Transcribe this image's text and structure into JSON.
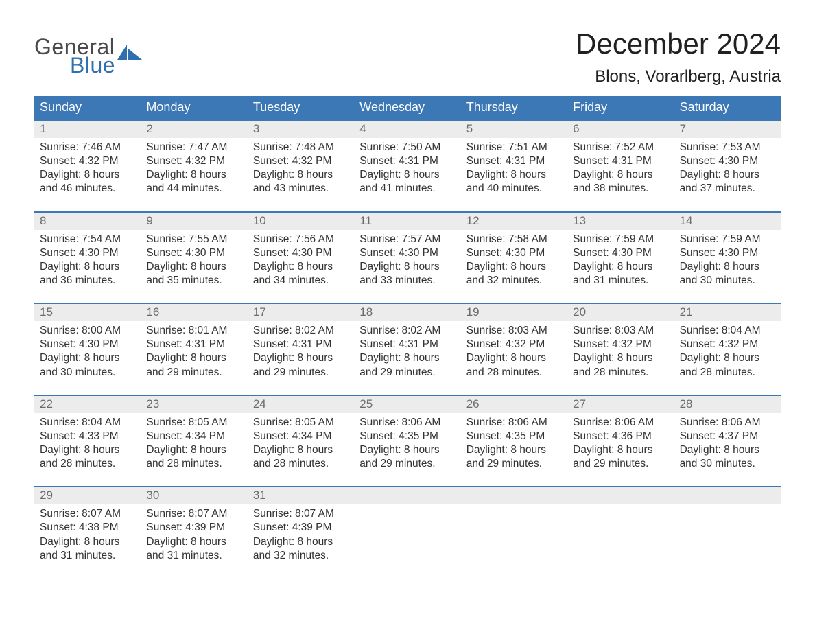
{
  "logo": {
    "word1": "General",
    "word2": "Blue",
    "text_color": "#4a4a4a",
    "accent_color": "#2f6fad"
  },
  "title": "December 2024",
  "location": "Blons, Vorarlberg, Austria",
  "colors": {
    "header_bg": "#3b78b5",
    "header_text": "#ffffff",
    "daynum_bg": "#ececec",
    "daynum_text": "#6b6b6b",
    "body_text": "#333333",
    "week_border": "#3b78b5",
    "page_bg": "#ffffff"
  },
  "typography": {
    "title_fontsize": 42,
    "location_fontsize": 24,
    "weekday_fontsize": 18,
    "daynum_fontsize": 17,
    "cell_fontsize": 15.5
  },
  "weekdays": [
    "Sunday",
    "Monday",
    "Tuesday",
    "Wednesday",
    "Thursday",
    "Friday",
    "Saturday"
  ],
  "weeks": [
    [
      {
        "n": "1",
        "sunrise": "7:46 AM",
        "sunset": "4:32 PM",
        "daylight": "8 hours and 46 minutes."
      },
      {
        "n": "2",
        "sunrise": "7:47 AM",
        "sunset": "4:32 PM",
        "daylight": "8 hours and 44 minutes."
      },
      {
        "n": "3",
        "sunrise": "7:48 AM",
        "sunset": "4:32 PM",
        "daylight": "8 hours and 43 minutes."
      },
      {
        "n": "4",
        "sunrise": "7:50 AM",
        "sunset": "4:31 PM",
        "daylight": "8 hours and 41 minutes."
      },
      {
        "n": "5",
        "sunrise": "7:51 AM",
        "sunset": "4:31 PM",
        "daylight": "8 hours and 40 minutes."
      },
      {
        "n": "6",
        "sunrise": "7:52 AM",
        "sunset": "4:31 PM",
        "daylight": "8 hours and 38 minutes."
      },
      {
        "n": "7",
        "sunrise": "7:53 AM",
        "sunset": "4:30 PM",
        "daylight": "8 hours and 37 minutes."
      }
    ],
    [
      {
        "n": "8",
        "sunrise": "7:54 AM",
        "sunset": "4:30 PM",
        "daylight": "8 hours and 36 minutes."
      },
      {
        "n": "9",
        "sunrise": "7:55 AM",
        "sunset": "4:30 PM",
        "daylight": "8 hours and 35 minutes."
      },
      {
        "n": "10",
        "sunrise": "7:56 AM",
        "sunset": "4:30 PM",
        "daylight": "8 hours and 34 minutes."
      },
      {
        "n": "11",
        "sunrise": "7:57 AM",
        "sunset": "4:30 PM",
        "daylight": "8 hours and 33 minutes."
      },
      {
        "n": "12",
        "sunrise": "7:58 AM",
        "sunset": "4:30 PM",
        "daylight": "8 hours and 32 minutes."
      },
      {
        "n": "13",
        "sunrise": "7:59 AM",
        "sunset": "4:30 PM",
        "daylight": "8 hours and 31 minutes."
      },
      {
        "n": "14",
        "sunrise": "7:59 AM",
        "sunset": "4:30 PM",
        "daylight": "8 hours and 30 minutes."
      }
    ],
    [
      {
        "n": "15",
        "sunrise": "8:00 AM",
        "sunset": "4:30 PM",
        "daylight": "8 hours and 30 minutes."
      },
      {
        "n": "16",
        "sunrise": "8:01 AM",
        "sunset": "4:31 PM",
        "daylight": "8 hours and 29 minutes."
      },
      {
        "n": "17",
        "sunrise": "8:02 AM",
        "sunset": "4:31 PM",
        "daylight": "8 hours and 29 minutes."
      },
      {
        "n": "18",
        "sunrise": "8:02 AM",
        "sunset": "4:31 PM",
        "daylight": "8 hours and 29 minutes."
      },
      {
        "n": "19",
        "sunrise": "8:03 AM",
        "sunset": "4:32 PM",
        "daylight": "8 hours and 28 minutes."
      },
      {
        "n": "20",
        "sunrise": "8:03 AM",
        "sunset": "4:32 PM",
        "daylight": "8 hours and 28 minutes."
      },
      {
        "n": "21",
        "sunrise": "8:04 AM",
        "sunset": "4:32 PM",
        "daylight": "8 hours and 28 minutes."
      }
    ],
    [
      {
        "n": "22",
        "sunrise": "8:04 AM",
        "sunset": "4:33 PM",
        "daylight": "8 hours and 28 minutes."
      },
      {
        "n": "23",
        "sunrise": "8:05 AM",
        "sunset": "4:34 PM",
        "daylight": "8 hours and 28 minutes."
      },
      {
        "n": "24",
        "sunrise": "8:05 AM",
        "sunset": "4:34 PM",
        "daylight": "8 hours and 28 minutes."
      },
      {
        "n": "25",
        "sunrise": "8:06 AM",
        "sunset": "4:35 PM",
        "daylight": "8 hours and 29 minutes."
      },
      {
        "n": "26",
        "sunrise": "8:06 AM",
        "sunset": "4:35 PM",
        "daylight": "8 hours and 29 minutes."
      },
      {
        "n": "27",
        "sunrise": "8:06 AM",
        "sunset": "4:36 PM",
        "daylight": "8 hours and 29 minutes."
      },
      {
        "n": "28",
        "sunrise": "8:06 AM",
        "sunset": "4:37 PM",
        "daylight": "8 hours and 30 minutes."
      }
    ],
    [
      {
        "n": "29",
        "sunrise": "8:07 AM",
        "sunset": "4:38 PM",
        "daylight": "8 hours and 31 minutes."
      },
      {
        "n": "30",
        "sunrise": "8:07 AM",
        "sunset": "4:39 PM",
        "daylight": "8 hours and 31 minutes."
      },
      {
        "n": "31",
        "sunrise": "8:07 AM",
        "sunset": "4:39 PM",
        "daylight": "8 hours and 32 minutes."
      },
      null,
      null,
      null,
      null
    ]
  ],
  "labels": {
    "sunrise": "Sunrise: ",
    "sunset": "Sunset: ",
    "daylight": "Daylight: "
  }
}
